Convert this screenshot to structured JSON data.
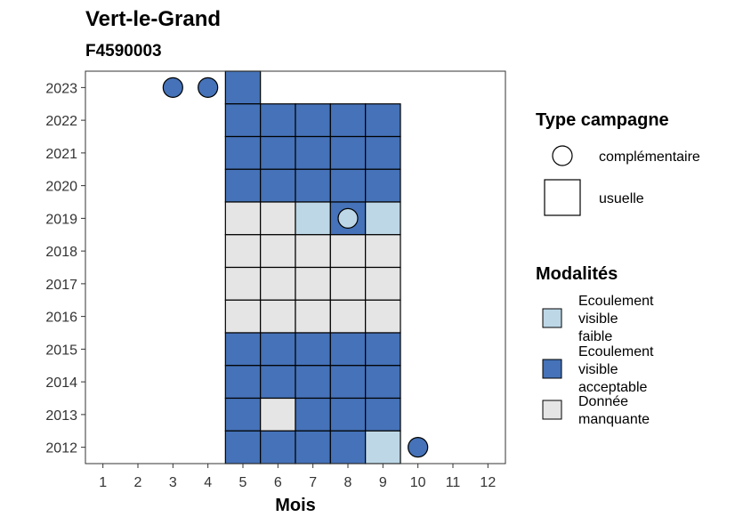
{
  "chart_data": {
    "type": "heatmap",
    "title": "Vert-le-Grand",
    "subtitle": "F4590003",
    "xlabel": "Mois",
    "ylabel": "",
    "x_ticks": [
      1,
      2,
      3,
      4,
      5,
      6,
      7,
      8,
      9,
      10,
      11,
      12
    ],
    "y_ticks": [
      2012,
      2013,
      2014,
      2015,
      2016,
      2017,
      2018,
      2019,
      2020,
      2021,
      2022,
      2023
    ],
    "xlim": [
      0.5,
      12.5
    ],
    "ylim": [
      2011.5,
      2023.5
    ],
    "grid": false,
    "colors": {
      "faible": "#bdd7e7",
      "acceptable": "#4572b8",
      "manquante": "#e5e5e5"
    },
    "legend_shape": {
      "title": "Type campagne",
      "entries": [
        {
          "label": "complémentaire",
          "shape": "circle"
        },
        {
          "label": "usuelle",
          "shape": "square"
        }
      ]
    },
    "legend_fill": {
      "title": "Modalités",
      "entries": [
        {
          "key": "faible",
          "lines": [
            "Ecoulement",
            "visible",
            "faible"
          ]
        },
        {
          "key": "acceptable",
          "lines": [
            "Ecoulement",
            "visible",
            "acceptable"
          ]
        },
        {
          "key": "manquante",
          "lines": [
            "Donnée",
            "manquante"
          ]
        }
      ]
    },
    "usuelle": [
      {
        "year": 2023,
        "months": {
          "5": "acceptable"
        }
      },
      {
        "year": 2022,
        "months": {
          "5": "acceptable",
          "6": "acceptable",
          "7": "acceptable",
          "8": "acceptable",
          "9": "acceptable"
        }
      },
      {
        "year": 2021,
        "months": {
          "5": "acceptable",
          "6": "acceptable",
          "7": "acceptable",
          "8": "acceptable",
          "9": "acceptable"
        }
      },
      {
        "year": 2020,
        "months": {
          "5": "acceptable",
          "6": "acceptable",
          "7": "acceptable",
          "8": "acceptable",
          "9": "acceptable"
        }
      },
      {
        "year": 2019,
        "months": {
          "5": "manquante",
          "6": "manquante",
          "7": "faible",
          "8": "acceptable",
          "9": "faible"
        }
      },
      {
        "year": 2018,
        "months": {
          "5": "manquante",
          "6": "manquante",
          "7": "manquante",
          "8": "manquante",
          "9": "manquante"
        }
      },
      {
        "year": 2017,
        "months": {
          "5": "manquante",
          "6": "manquante",
          "7": "manquante",
          "8": "manquante",
          "9": "manquante"
        }
      },
      {
        "year": 2016,
        "months": {
          "5": "manquante",
          "6": "manquante",
          "7": "manquante",
          "8": "manquante",
          "9": "manquante"
        }
      },
      {
        "year": 2015,
        "months": {
          "5": "acceptable",
          "6": "acceptable",
          "7": "acceptable",
          "8": "acceptable",
          "9": "acceptable"
        }
      },
      {
        "year": 2014,
        "months": {
          "5": "acceptable",
          "6": "acceptable",
          "7": "acceptable",
          "8": "acceptable",
          "9": "acceptable"
        }
      },
      {
        "year": 2013,
        "months": {
          "5": "acceptable",
          "6": "manquante",
          "7": "acceptable",
          "8": "acceptable",
          "9": "acceptable"
        }
      },
      {
        "year": 2012,
        "months": {
          "5": "acceptable",
          "6": "acceptable",
          "7": "acceptable",
          "8": "acceptable",
          "9": "faible"
        }
      }
    ],
    "complementaire": [
      {
        "year": 2023,
        "month": 3,
        "value": "acceptable"
      },
      {
        "year": 2023,
        "month": 4,
        "value": "acceptable"
      },
      {
        "year": 2019,
        "month": 8,
        "value": "faible"
      },
      {
        "year": 2012,
        "month": 10,
        "value": "acceptable"
      }
    ]
  }
}
